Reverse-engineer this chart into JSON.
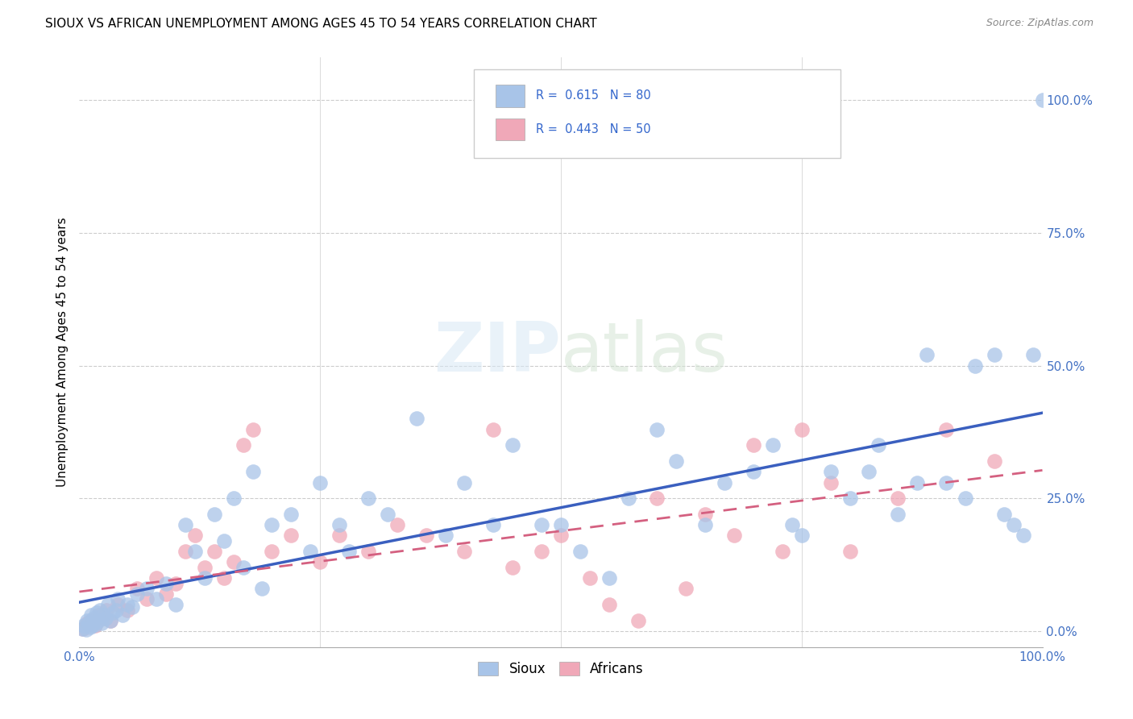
{
  "title": "SIOUX VS AFRICAN UNEMPLOYMENT AMONG AGES 45 TO 54 YEARS CORRELATION CHART",
  "source": "Source: ZipAtlas.com",
  "ylabel": "Unemployment Among Ages 45 to 54 years",
  "ytick_labels": [
    "0.0%",
    "25.0%",
    "50.0%",
    "75.0%",
    "100.0%"
  ],
  "ytick_values": [
    0,
    25,
    50,
    75,
    100
  ],
  "xlim": [
    0,
    100
  ],
  "ylim": [
    -3,
    108
  ],
  "sioux_color": "#a8c4e8",
  "african_color": "#f0a8b8",
  "sioux_line_color": "#3a5fbf",
  "african_line_color": "#d46080",
  "sioux_R": 0.615,
  "african_R": 0.443,
  "sioux_x": [
    0.3,
    0.5,
    0.7,
    0.8,
    1.0,
    1.1,
    1.2,
    1.3,
    1.5,
    1.6,
    1.8,
    2.0,
    2.1,
    2.3,
    2.5,
    2.7,
    3.0,
    3.2,
    3.5,
    3.8,
    4.0,
    4.5,
    5.0,
    5.5,
    6.0,
    7.0,
    8.0,
    9.0,
    10.0,
    11.0,
    12.0,
    13.0,
    14.0,
    15.0,
    16.0,
    17.0,
    18.0,
    19.0,
    20.0,
    22.0,
    24.0,
    25.0,
    27.0,
    28.0,
    30.0,
    32.0,
    35.0,
    38.0,
    40.0,
    43.0,
    45.0,
    48.0,
    50.0,
    52.0,
    55.0,
    57.0,
    60.0,
    62.0,
    65.0,
    67.0,
    70.0,
    72.0,
    74.0,
    75.0,
    78.0,
    80.0,
    82.0,
    83.0,
    85.0,
    87.0,
    88.0,
    90.0,
    92.0,
    93.0,
    95.0,
    96.0,
    97.0,
    98.0,
    99.0,
    100.0
  ],
  "sioux_y": [
    0.5,
    1.0,
    0.3,
    2.0,
    1.5,
    0.8,
    3.0,
    1.0,
    2.5,
    1.2,
    3.5,
    2.0,
    4.0,
    1.5,
    3.0,
    2.5,
    5.0,
    2.0,
    3.5,
    4.0,
    6.0,
    3.0,
    5.0,
    4.5,
    7.0,
    8.0,
    6.0,
    9.0,
    5.0,
    20.0,
    15.0,
    10.0,
    22.0,
    17.0,
    25.0,
    12.0,
    30.0,
    8.0,
    20.0,
    22.0,
    15.0,
    28.0,
    20.0,
    15.0,
    25.0,
    22.0,
    40.0,
    18.0,
    28.0,
    20.0,
    35.0,
    20.0,
    20.0,
    15.0,
    10.0,
    25.0,
    38.0,
    32.0,
    20.0,
    28.0,
    30.0,
    35.0,
    20.0,
    18.0,
    30.0,
    25.0,
    30.0,
    35.0,
    22.0,
    28.0,
    52.0,
    28.0,
    25.0,
    50.0,
    52.0,
    22.0,
    20.0,
    18.0,
    52.0,
    100.0
  ],
  "african_x": [
    0.4,
    0.8,
    1.2,
    1.6,
    2.0,
    2.4,
    2.8,
    3.2,
    4.0,
    5.0,
    6.0,
    7.0,
    8.0,
    9.0,
    10.0,
    11.0,
    12.0,
    13.0,
    14.0,
    15.0,
    16.0,
    17.0,
    18.0,
    20.0,
    22.0,
    25.0,
    27.0,
    30.0,
    33.0,
    36.0,
    40.0,
    43.0,
    45.0,
    48.0,
    50.0,
    53.0,
    55.0,
    58.0,
    60.0,
    63.0,
    65.0,
    68.0,
    70.0,
    73.0,
    75.0,
    78.0,
    80.0,
    85.0,
    90.0,
    95.0
  ],
  "african_y": [
    0.5,
    1.5,
    2.0,
    1.0,
    3.0,
    2.5,
    4.0,
    2.0,
    5.0,
    4.0,
    8.0,
    6.0,
    10.0,
    7.0,
    9.0,
    15.0,
    18.0,
    12.0,
    15.0,
    10.0,
    13.0,
    35.0,
    38.0,
    15.0,
    18.0,
    13.0,
    18.0,
    15.0,
    20.0,
    18.0,
    15.0,
    38.0,
    12.0,
    15.0,
    18.0,
    10.0,
    5.0,
    2.0,
    25.0,
    8.0,
    22.0,
    18.0,
    35.0,
    15.0,
    38.0,
    28.0,
    15.0,
    25.0,
    38.0,
    32.0
  ]
}
